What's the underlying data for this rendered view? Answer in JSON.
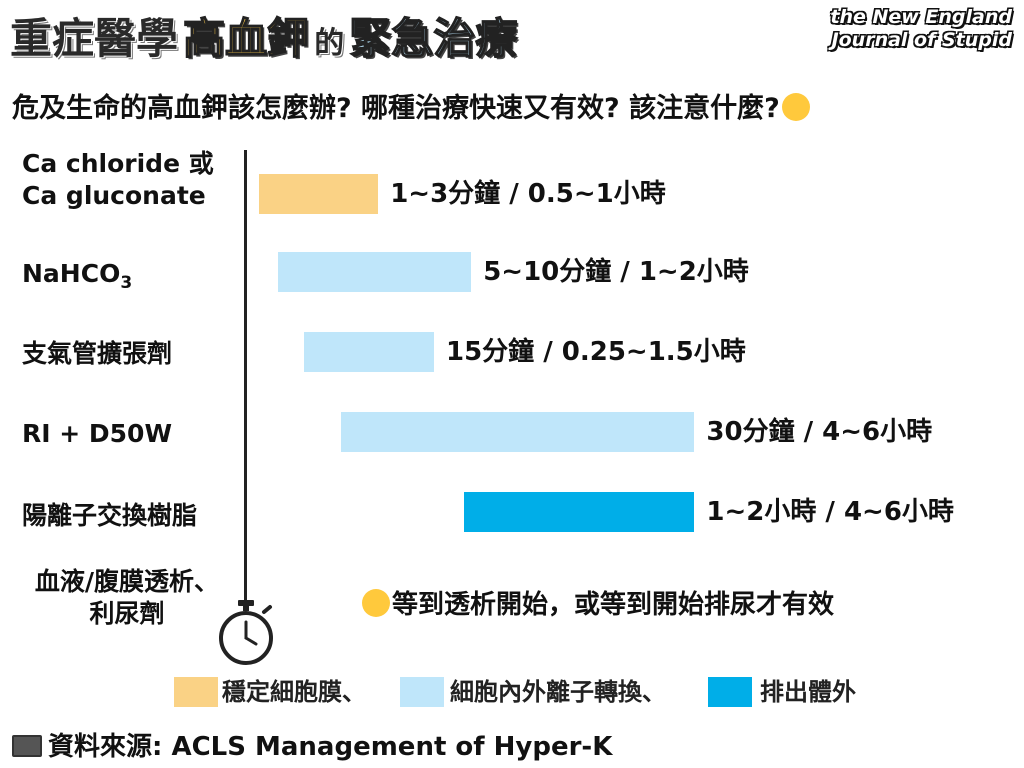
{
  "title": {
    "part1": "重症醫學",
    "part2": "高血鉀",
    "part3": "的",
    "part4": "緊急治療"
  },
  "brand": {
    "line1": "the New England",
    "line2": "Journal of Stupid"
  },
  "subtitle": "危及生命的高血鉀該怎麼辦? 哪種治療快速又有效? 該注意什麼?",
  "subtitle_emoji": "anxious-sweat-face-icon",
  "colors": {
    "membrane": "#fad285",
    "shift": "#bfe6fa",
    "excrete": "#00aee8"
  },
  "chart_data": {
    "type": "bar",
    "categories": [
      "Ca chloride 或 Ca gluconate",
      "NaHCO3",
      "支氣管擴張劑",
      "RI + D50W",
      "陽離子交換樹脂",
      "血液/腹膜透析、利尿劑"
    ],
    "series": [
      {
        "name": "穩定細胞膜",
        "color": "#fad285"
      },
      {
        "name": "細胞內外離子轉換",
        "color": "#bfe6fa"
      },
      {
        "name": "排出體外",
        "color": "#00aee8"
      }
    ],
    "bars": [
      {
        "category": "Ca chloride 或 Ca gluconate",
        "series": "穩定細胞膜",
        "start": 0.3,
        "end": 3.5,
        "label": "1~3分鐘 / 0.5~1小時"
      },
      {
        "category": "NaHCO3",
        "series": "細胞內外離子轉換",
        "start": 0.8,
        "end": 6.0,
        "label": "5~10分鐘 / 1~2小時"
      },
      {
        "category": "支氣管擴張劑",
        "series": "細胞內外離子轉換",
        "start": 1.5,
        "end": 5.0,
        "label": "15分鐘 / 0.25~1.5小時"
      },
      {
        "category": "RI + D50W",
        "series": "細胞內外離子轉換",
        "start": 2.5,
        "end": 12.0,
        "label": "30分鐘 / 4~6小時"
      },
      {
        "category": "陽離子交換樹脂",
        "series": "排出體外",
        "start": 5.8,
        "end": 12.0,
        "label": "1~2小時 / 4~6小時"
      }
    ],
    "note": "等到透析開始，或等到開始排尿才有效",
    "xlim": [
      0,
      20
    ],
    "axis_icon": "stopwatch-icon",
    "grid": false,
    "legend": "bottom"
  },
  "labels": {
    "ca_line1": "Ca chloride 或",
    "ca_line2": "Ca gluconate",
    "nahco3_base": "NaHCO",
    "nahco3_sub": "3",
    "bronchodilator": "支氣管擴張劑",
    "ri": "RI + D50W",
    "resin": "陽離子交換樹脂",
    "dialysis_line1": "血液/腹膜透析、",
    "dialysis_line2": "利尿劑"
  },
  "legend": [
    {
      "label": "穩定細胞膜、"
    },
    {
      "label": "細胞內外離子轉換、"
    },
    {
      "label": "排出體外"
    }
  ],
  "source": "資料來源: ACLS Management of Hyper-K"
}
